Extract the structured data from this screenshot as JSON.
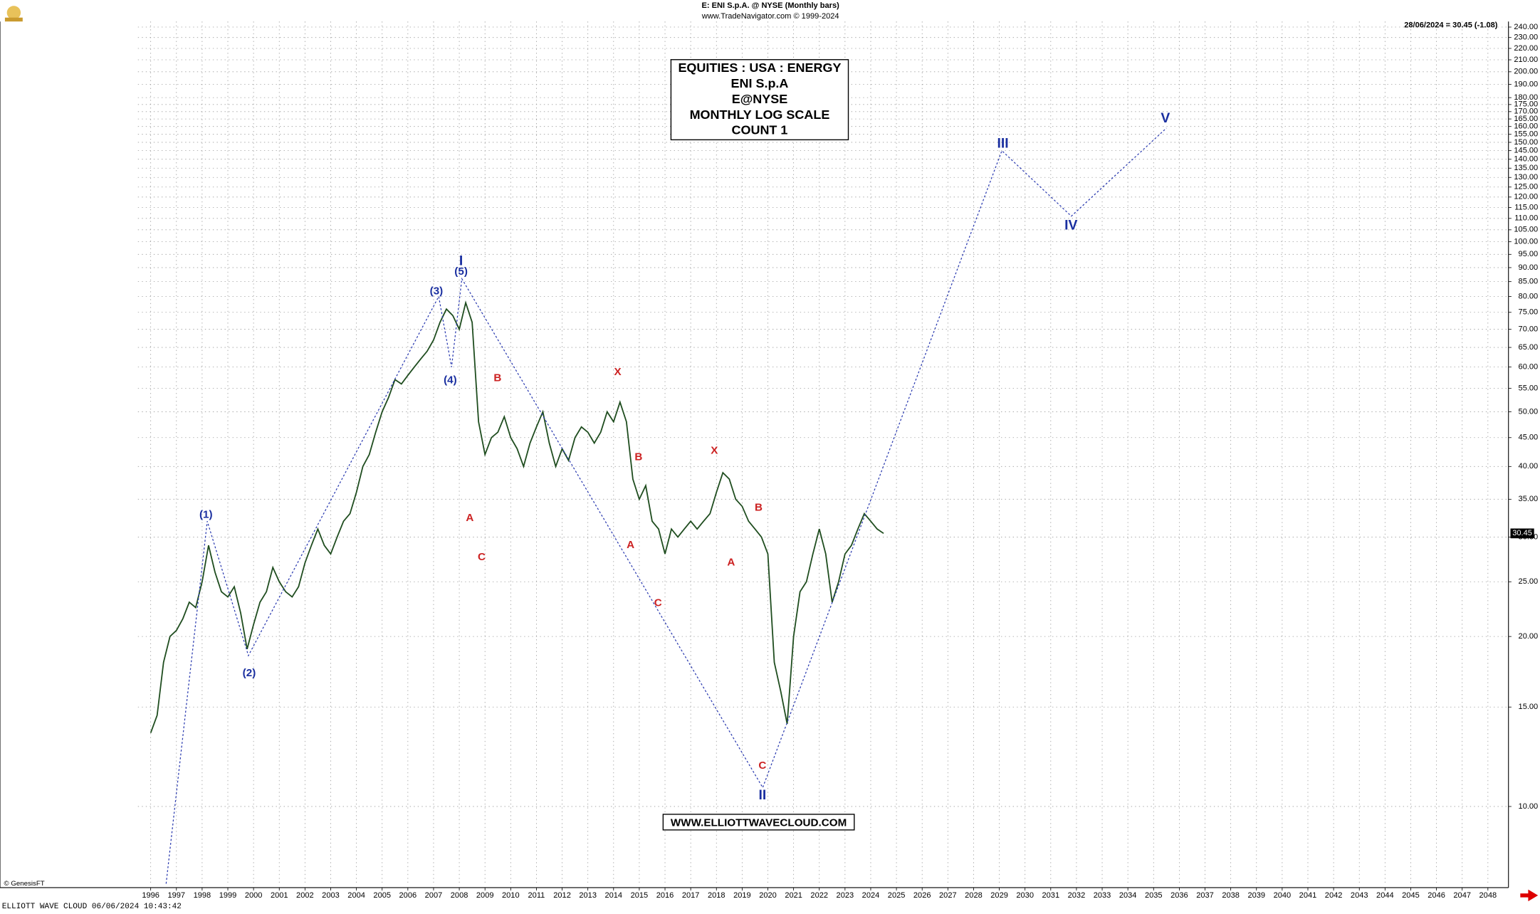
{
  "chart_data": {
    "type": "line",
    "header": [
      "E:  ENI S.p.A. @ NYSE  (Monthly bars)",
      "www.TradeNavigator.com © 1999-2024"
    ],
    "title_box": [
      "EQUITIES : USA : ENERGY",
      "ENI S.p.A",
      "E@NYSE",
      "MONTHLY LOG SCALE",
      "COUNT 1"
    ],
    "last_quote": "28/06/2024 = 30.45 (-1.08)",
    "copyright": "© GenesisFT",
    "website": "WWW.ELLIOTTWAVECLOUD.COM",
    "footer": "ELLIOTT WAVE CLOUD   06/06/2024 10:43:42",
    "log_scale": true,
    "grid": true,
    "xlim": [
      1990.14,
      2048.8
    ],
    "xticks": [
      1996,
      1997,
      1998,
      1999,
      2000,
      2001,
      2002,
      2003,
      2004,
      2005,
      2006,
      2007,
      2008,
      2009,
      2010,
      2011,
      2012,
      2013,
      2014,
      2015,
      2016,
      2017,
      2018,
      2019,
      2020,
      2021,
      2022,
      2023,
      2024,
      2025,
      2026,
      2027,
      2028,
      2029,
      2030,
      2031,
      2032,
      2033,
      2034,
      2035,
      2036,
      2037,
      2038,
      2039,
      2040,
      2041,
      2042,
      2043,
      2044,
      2045,
      2046,
      2047,
      2048
    ],
    "ylim": [
      7.27,
      245.5
    ],
    "yticks": [
      {
        "value": 10,
        "label": "10.00"
      },
      {
        "value": 15,
        "label": "15.00"
      },
      {
        "value": 20,
        "label": "20.00"
      },
      {
        "value": 25,
        "label": "25.00"
      },
      {
        "value": 30,
        "label": "30.00"
      },
      {
        "value": 35,
        "label": "35.00"
      },
      {
        "value": 40,
        "label": "40.00"
      },
      {
        "value": 45,
        "label": "45.00"
      },
      {
        "value": 50,
        "label": "50.00"
      },
      {
        "value": 55,
        "label": "55.00"
      },
      {
        "value": 60,
        "label": "60.00"
      },
      {
        "value": 65,
        "label": "65.00"
      },
      {
        "value": 70,
        "label": "70.00"
      },
      {
        "value": 75,
        "label": "75.00"
      },
      {
        "value": 80,
        "label": "80.00"
      },
      {
        "value": 85,
        "label": "85.00"
      },
      {
        "value": 90,
        "label": "90.00"
      },
      {
        "value": 95,
        "label": "95.00"
      },
      {
        "value": 100,
        "label": "100.00"
      },
      {
        "value": 105,
        "label": "105.00"
      },
      {
        "value": 110,
        "label": "110.00"
      },
      {
        "value": 115,
        "label": "115.00"
      },
      {
        "value": 120,
        "label": "120.00"
      },
      {
        "value": 125,
        "label": "125.00"
      },
      {
        "value": 130,
        "label": "130.00"
      },
      {
        "value": 135,
        "label": "135.00"
      },
      {
        "value": 140,
        "label": "140.00"
      },
      {
        "value": 145,
        "label": "145.00"
      },
      {
        "value": 150,
        "label": "150.00"
      },
      {
        "value": 155,
        "label": "155.00"
      },
      {
        "value": 160,
        "label": "160.00"
      },
      {
        "value": 165,
        "label": "165.00"
      },
      {
        "value": 170,
        "label": "170.00"
      },
      {
        "value": 175,
        "label": "175.00"
      },
      {
        "value": 180,
        "label": "180.00"
      },
      {
        "value": 190,
        "label": "190.00"
      },
      {
        "value": 200,
        "label": "200.00"
      },
      {
        "value": 210,
        "label": "210.00"
      },
      {
        "value": 220,
        "label": "220.00"
      },
      {
        "value": 230,
        "label": "230.00"
      },
      {
        "value": 240,
        "label": "240.00"
      }
    ],
    "series": [
      {
        "color": "#1f4d1f",
        "x": [
          1996,
          1996.25,
          1996.5,
          1996.75,
          1997,
          1997.25,
          1997.5,
          1997.75,
          1998,
          1998.25,
          1998.5,
          1998.75,
          1999,
          1999.25,
          1999.5,
          1999.75,
          2000,
          2000.25,
          2000.5,
          2000.75,
          2001,
          2001.25,
          2001.5,
          2001.75,
          2002,
          2002.25,
          2002.5,
          2002.75,
          2003,
          2003.25,
          2003.5,
          2003.75,
          2004,
          2004.25,
          2004.5,
          2004.75,
          2005,
          2005.25,
          2005.5,
          2005.75,
          2006,
          2006.25,
          2006.5,
          2006.75,
          2007,
          2007.25,
          2007.5,
          2007.75,
          2008,
          2008.25,
          2008.5,
          2008.75,
          2009,
          2009.25,
          2009.5,
          2009.75,
          2010,
          2010.25,
          2010.5,
          2010.75,
          2011,
          2011.25,
          2011.5,
          2011.75,
          2012,
          2012.25,
          2012.5,
          2012.75,
          2013,
          2013.25,
          2013.5,
          2013.75,
          2014,
          2014.25,
          2014.5,
          2014.75,
          2015,
          2015.25,
          2015.5,
          2015.75,
          2016,
          2016.25,
          2016.5,
          2016.75,
          2017,
          2017.25,
          2017.5,
          2017.75,
          2018,
          2018.25,
          2018.5,
          2018.75,
          2019,
          2019.25,
          2019.5,
          2019.75,
          2020,
          2020.25,
          2020.5,
          2020.75,
          2021,
          2021.25,
          2021.5,
          2021.75,
          2022,
          2022.25,
          2022.5,
          2022.75,
          2023,
          2023.25,
          2023.5,
          2023.75,
          2024,
          2024.25,
          2024.5
        ],
        "values": [
          13.5,
          14.5,
          18,
          20,
          20.5,
          21.5,
          23,
          22.5,
          25,
          29,
          26,
          24,
          23.5,
          24.5,
          22,
          19,
          21,
          23,
          24,
          26.5,
          25,
          24,
          23.5,
          24.5,
          27,
          29,
          31,
          29,
          28,
          30,
          32,
          33,
          36,
          40,
          42,
          46,
          50,
          53,
          57,
          56,
          58,
          60,
          62,
          64,
          67,
          72,
          76,
          74,
          70,
          78,
          72,
          48,
          42,
          45,
          46,
          49,
          45,
          43,
          40,
          44,
          47,
          50,
          44,
          40,
          43,
          41,
          45,
          47,
          46,
          44,
          46,
          50,
          48,
          52,
          48,
          38,
          35,
          37,
          32,
          31,
          28,
          31,
          30,
          31,
          32,
          31,
          32,
          33,
          36,
          39,
          38,
          35,
          34,
          32,
          31,
          30,
          28,
          18,
          16,
          14,
          20,
          24,
          25,
          28,
          31,
          28,
          23,
          25,
          28,
          29,
          31,
          33,
          32,
          31,
          30.45
        ]
      }
    ],
    "wave_path": {
      "color": "#2b3bb0",
      "x": [
        1996.6,
        1998.2,
        1999.8,
        2007.2,
        2007.7,
        2008.1,
        2019.8,
        2029.1,
        2031.8,
        2035.5
      ],
      "y": [
        7.3,
        32,
        18.5,
        80,
        60,
        86,
        10.8,
        145,
        111,
        159
      ]
    },
    "annotations": [
      {
        "text": "(1)",
        "x": 1998.15,
        "y": 32.8,
        "color": "#1a2fa0"
      },
      {
        "text": "(2)",
        "x": 1999.83,
        "y": 17.2,
        "color": "#1a2fa0"
      },
      {
        "text": "(3)",
        "x": 2007.11,
        "y": 81.6,
        "color": "#1a2fa0"
      },
      {
        "text": "(4)",
        "x": 2007.65,
        "y": 56.8,
        "color": "#1a2fa0"
      },
      {
        "text": "(5)",
        "x": 2008.07,
        "y": 88.4,
        "color": "#1a2fa0"
      },
      {
        "text": "I",
        "x": 2008.07,
        "y": 92.3,
        "color": "#1a2fa0"
      },
      {
        "text": "II",
        "x": 2019.79,
        "y": 10.45,
        "color": "#1a2fa0"
      },
      {
        "text": "III",
        "x": 2029.14,
        "y": 149,
        "color": "#1a2fa0"
      },
      {
        "text": "IV",
        "x": 2031.79,
        "y": 106.6,
        "color": "#1a2fa0"
      },
      {
        "text": "V",
        "x": 2035.46,
        "y": 165,
        "color": "#1a2fa0"
      },
      {
        "text": "A",
        "x": 2008.41,
        "y": 32.4,
        "color": "#cc2222"
      },
      {
        "text": "C",
        "x": 2008.87,
        "y": 27.6,
        "color": "#cc2222"
      },
      {
        "text": "B",
        "x": 2009.49,
        "y": 57.3,
        "color": "#cc2222"
      },
      {
        "text": "X",
        "x": 2014.16,
        "y": 58.7,
        "color": "#cc2222"
      },
      {
        "text": "B",
        "x": 2014.97,
        "y": 41.5,
        "color": "#cc2222"
      },
      {
        "text": "A",
        "x": 2014.66,
        "y": 29,
        "color": "#cc2222"
      },
      {
        "text": "C",
        "x": 2015.73,
        "y": 22.9,
        "color": "#cc2222"
      },
      {
        "text": "X",
        "x": 2017.92,
        "y": 42.6,
        "color": "#cc2222"
      },
      {
        "text": "A",
        "x": 2018.57,
        "y": 27,
        "color": "#cc2222"
      },
      {
        "text": "B",
        "x": 2019.64,
        "y": 33.8,
        "color": "#cc2222"
      },
      {
        "text": "C",
        "x": 2019.79,
        "y": 11.8,
        "color": "#cc2222"
      }
    ]
  }
}
